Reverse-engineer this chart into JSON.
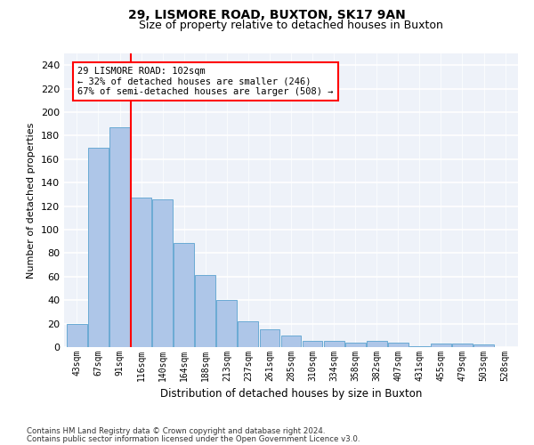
{
  "title1": "29, LISMORE ROAD, BUXTON, SK17 9AN",
  "title2": "Size of property relative to detached houses in Buxton",
  "xlabel": "Distribution of detached houses by size in Buxton",
  "ylabel": "Number of detached properties",
  "categories": [
    "43sqm",
    "67sqm",
    "91sqm",
    "116sqm",
    "140sqm",
    "164sqm",
    "188sqm",
    "213sqm",
    "237sqm",
    "261sqm",
    "285sqm",
    "310sqm",
    "334sqm",
    "358sqm",
    "382sqm",
    "407sqm",
    "431sqm",
    "455sqm",
    "479sqm",
    "503sqm",
    "528sqm"
  ],
  "values": [
    20,
    170,
    187,
    127,
    126,
    89,
    61,
    40,
    22,
    15,
    10,
    5,
    5,
    4,
    5,
    4,
    1,
    3,
    3,
    2,
    0
  ],
  "bar_color": "#aec6e8",
  "bar_edge_color": "#6aaad4",
  "annotation_line1": "29 LISMORE ROAD: 102sqm",
  "annotation_line2": "← 32% of detached houses are smaller (246)",
  "annotation_line3": "67% of semi-detached houses are larger (508) →",
  "redline_x": 2.5,
  "annotation_box_color": "white",
  "annotation_box_edge": "red",
  "redline_color": "red",
  "ylim": [
    0,
    250
  ],
  "yticks": [
    0,
    20,
    40,
    60,
    80,
    100,
    120,
    140,
    160,
    180,
    200,
    220,
    240
  ],
  "background_color": "#eef2f9",
  "footer1": "Contains HM Land Registry data © Crown copyright and database right 2024.",
  "footer2": "Contains public sector information licensed under the Open Government Licence v3.0."
}
